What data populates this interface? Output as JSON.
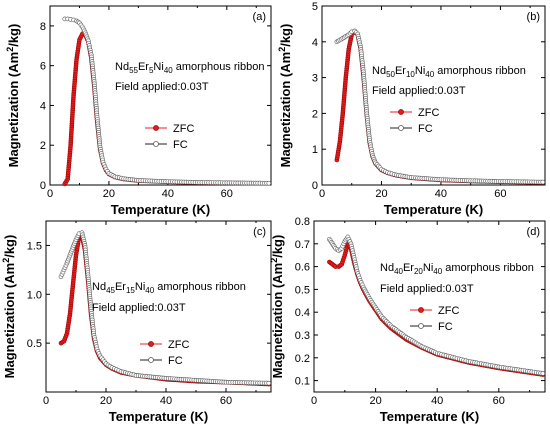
{
  "chart_data": [
    {
      "type": "line",
      "panel_label": "(a)",
      "title": "Nd55Er5Ni40 amorphous ribbon",
      "title_parts": {
        "prefix": "Nd",
        "s1": "55",
        "m1": "Er",
        "s2": "5",
        "m2": "Ni",
        "s3": "40",
        "suffix": " amorphous ribbon"
      },
      "subtitle": "Field applied:0.03T",
      "xlabel": "Temperature (K)",
      "ylabel": "Magnetization (Am2/kg)",
      "xlim": [
        0,
        75
      ],
      "ylim": [
        0,
        9
      ],
      "xticks": [
        0,
        20,
        40,
        60
      ],
      "yticks": [
        0,
        2,
        4,
        6,
        8
      ],
      "series": [
        {
          "name": "ZFC",
          "color": "#e02020",
          "x": [
            5,
            6,
            7,
            8,
            9,
            10,
            11,
            12,
            13,
            14,
            15,
            16,
            17,
            18,
            19,
            20,
            22,
            25,
            30,
            40,
            50,
            60,
            75
          ],
          "values": [
            0.05,
            0.3,
            2.0,
            4.5,
            6.3,
            7.3,
            7.6,
            7.55,
            7.2,
            6.4,
            5.0,
            3.2,
            1.8,
            1.1,
            0.75,
            0.55,
            0.4,
            0.3,
            0.22,
            0.16,
            0.12,
            0.1,
            0.08
          ]
        },
        {
          "name": "FC",
          "color": "#555555",
          "x": [
            5,
            6,
            7,
            8,
            9,
            10,
            11,
            12,
            13,
            14,
            15,
            16,
            17,
            18,
            19,
            20,
            22,
            25,
            30,
            40,
            50,
            60,
            75
          ],
          "values": [
            8.35,
            8.35,
            8.33,
            8.3,
            8.25,
            8.15,
            7.95,
            7.65,
            7.25,
            6.55,
            5.2,
            3.4,
            1.9,
            1.15,
            0.8,
            0.58,
            0.42,
            0.32,
            0.23,
            0.17,
            0.13,
            0.11,
            0.09
          ]
        }
      ]
    },
    {
      "type": "line",
      "panel_label": "(b)",
      "title": "Nd50Er10Ni40 amorphous ribbon",
      "title_parts": {
        "prefix": "Nd",
        "s1": "50",
        "m1": "Er",
        "s2": "10",
        "m2": "Ni",
        "s3": "40",
        "suffix": " amorphous ribbon"
      },
      "subtitle": "Field applied:0.03T",
      "xlabel": "Temperature (K)",
      "ylabel": "Magnetization (Am2/kg)",
      "xlim": [
        0,
        75
      ],
      "ylim": [
        0,
        5
      ],
      "xticks": [
        0,
        20,
        40,
        60
      ],
      "yticks": [
        0,
        1,
        2,
        3,
        4,
        5
      ],
      "series": [
        {
          "name": "ZFC",
          "color": "#e02020",
          "x": [
            5,
            6,
            7,
            8,
            9,
            10,
            11,
            12,
            13,
            14,
            15,
            16,
            17,
            18,
            20,
            22,
            25,
            30,
            40,
            50,
            60,
            75
          ],
          "values": [
            0.7,
            1.2,
            2.0,
            3.0,
            3.8,
            4.2,
            4.3,
            4.2,
            3.8,
            3.0,
            2.0,
            1.2,
            0.8,
            0.6,
            0.42,
            0.34,
            0.27,
            0.2,
            0.14,
            0.11,
            0.09,
            0.07
          ]
        },
        {
          "name": "FC",
          "color": "#555555",
          "x": [
            5,
            6,
            7,
            8,
            9,
            10,
            11,
            12,
            13,
            14,
            15,
            16,
            17,
            18,
            20,
            22,
            25,
            30,
            40,
            50,
            60,
            75
          ],
          "values": [
            4.0,
            4.05,
            4.1,
            4.15,
            4.2,
            4.28,
            4.3,
            4.22,
            3.85,
            3.1,
            2.05,
            1.25,
            0.82,
            0.62,
            0.44,
            0.35,
            0.28,
            0.21,
            0.15,
            0.12,
            0.1,
            0.08
          ]
        }
      ]
    },
    {
      "type": "line",
      "panel_label": "(c)",
      "title": "Nd45Er15Ni40 amorphous ribbon",
      "title_parts": {
        "prefix": "Nd",
        "s1": "45",
        "m1": "Er",
        "s2": "15",
        "m2": "Ni",
        "s3": "40",
        "suffix": " amorphous ribbon"
      },
      "subtitle": "Field applied:0.03T",
      "xlabel": "Temperature (K)",
      "ylabel": "Magnetization (Am2/kg)",
      "xlim": [
        0,
        75
      ],
      "ylim": [
        0,
        1.75
      ],
      "xticks": [
        0,
        20,
        40,
        60
      ],
      "yticks": [
        0.5,
        1.0,
        1.5
      ],
      "ytick_labels": [
        "0.5",
        "1.0",
        "1.5"
      ],
      "series": [
        {
          "name": "ZFC",
          "color": "#e02020",
          "x": [
            5,
            6,
            7,
            8,
            9,
            10,
            11,
            12,
            13,
            14,
            15,
            16,
            17,
            18,
            20,
            22,
            25,
            30,
            40,
            50,
            60,
            75
          ],
          "values": [
            0.5,
            0.52,
            0.6,
            0.8,
            1.1,
            1.4,
            1.58,
            1.6,
            1.45,
            1.15,
            0.8,
            0.55,
            0.42,
            0.35,
            0.28,
            0.24,
            0.2,
            0.17,
            0.13,
            0.11,
            0.1,
            0.08
          ]
        },
        {
          "name": "FC",
          "color": "#555555",
          "x": [
            5,
            6,
            7,
            8,
            9,
            10,
            11,
            12,
            13,
            14,
            15,
            16,
            17,
            18,
            20,
            22,
            25,
            30,
            40,
            50,
            60,
            75
          ],
          "values": [
            1.18,
            1.25,
            1.32,
            1.4,
            1.48,
            1.56,
            1.62,
            1.63,
            1.5,
            1.2,
            0.85,
            0.58,
            0.44,
            0.37,
            0.29,
            0.25,
            0.21,
            0.17,
            0.14,
            0.12,
            0.1,
            0.09
          ]
        }
      ]
    },
    {
      "type": "line",
      "panel_label": "(d)",
      "title": "Nd40Er20Ni40 amorphous ribbon",
      "title_parts": {
        "prefix": "Nd",
        "s1": "40",
        "m1": "Er",
        "s2": "20",
        "m2": "Ni",
        "s3": "40",
        "suffix": " amorphous ribbon"
      },
      "subtitle": "Field applied:0.03T",
      "xlabel": "Temperature (K)",
      "ylabel": "Magnetization (Am2/kg)",
      "xlim": [
        0,
        75
      ],
      "ylim": [
        0.05,
        0.8
      ],
      "xticks": [
        0,
        20,
        40,
        60
      ],
      "yticks": [
        0.1,
        0.2,
        0.3,
        0.4,
        0.5,
        0.6,
        0.7,
        0.8
      ],
      "ytick_labels": [
        "0.1",
        "0.2",
        "0.3",
        "0.4",
        "0.5",
        "0.6",
        "0.7",
        "0.8"
      ],
      "series": [
        {
          "name": "ZFC",
          "color": "#e02020",
          "x": [
            5,
            6,
            7,
            8,
            9,
            10,
            11,
            12,
            13,
            14,
            15,
            16,
            18,
            20,
            22,
            25,
            30,
            35,
            40,
            50,
            60,
            75
          ],
          "values": [
            0.62,
            0.61,
            0.6,
            0.6,
            0.61,
            0.65,
            0.7,
            0.68,
            0.62,
            0.57,
            0.53,
            0.5,
            0.45,
            0.41,
            0.37,
            0.33,
            0.28,
            0.245,
            0.215,
            0.18,
            0.155,
            0.125
          ]
        },
        {
          "name": "FC",
          "color": "#555555",
          "x": [
            5,
            6,
            7,
            8,
            9,
            10,
            11,
            12,
            13,
            14,
            15,
            16,
            18,
            20,
            22,
            25,
            30,
            35,
            40,
            50,
            60,
            75
          ],
          "values": [
            0.72,
            0.7,
            0.68,
            0.67,
            0.68,
            0.71,
            0.73,
            0.7,
            0.64,
            0.58,
            0.54,
            0.51,
            0.46,
            0.42,
            0.38,
            0.34,
            0.29,
            0.25,
            0.22,
            0.185,
            0.16,
            0.13
          ]
        }
      ]
    }
  ]
}
